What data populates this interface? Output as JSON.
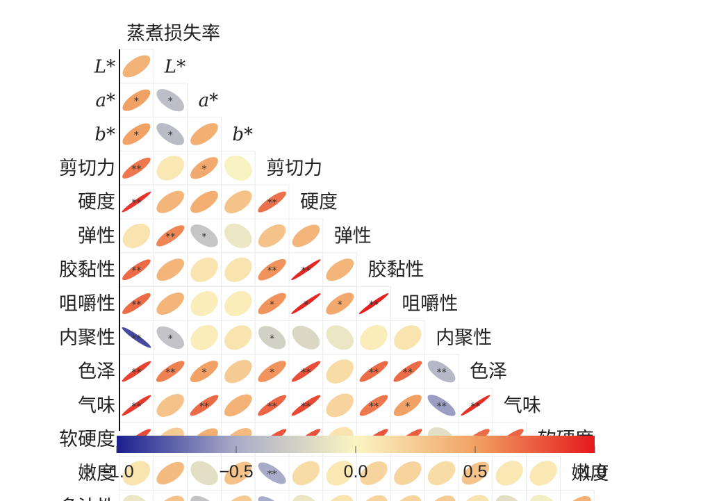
{
  "chart_data": {
    "type": "heatmap",
    "title": "",
    "top_label": "蒸煮损失率",
    "variables": [
      "L*",
      "a*",
      "b*",
      "剪切力",
      "硬度",
      "弹性",
      "胶黏性",
      "咀嚼性",
      "内聚性",
      "色泽",
      "气味",
      "软硬度",
      "嫩度",
      "多汁性"
    ],
    "italic_variables": [
      "L*",
      "a*",
      "b*"
    ],
    "column_labels": [
      "蒸煮损失率",
      "L*",
      "a*",
      "b*",
      "剪切力",
      "硬度",
      "弹性",
      "胶黏性",
      "咀嚼性",
      "内聚性",
      "色泽",
      "气味",
      "软硬度",
      "嫩度"
    ],
    "rows": [
      {
        "label": "L*",
        "values": [
          0.4
        ],
        "sig": [
          ""
        ]
      },
      {
        "label": "a*",
        "values": [
          0.5,
          -0.38
        ],
        "sig": [
          "*",
          "*"
        ]
      },
      {
        "label": "b*",
        "values": [
          0.5,
          -0.4,
          0.42
        ],
        "sig": [
          "*",
          "*",
          ""
        ]
      },
      {
        "label": "剪切力",
        "values": [
          0.65,
          0.08,
          0.45,
          -0.02
        ],
        "sig": [
          "**",
          "",
          "*",
          ""
        ]
      },
      {
        "label": "硬度",
        "values": [
          0.9,
          0.38,
          0.42,
          0.3,
          0.68
        ],
        "sig": [
          "**",
          "",
          "",
          "",
          "**"
        ]
      },
      {
        "label": "弹性",
        "values": [
          0.1,
          0.6,
          -0.32,
          -0.1,
          0.3,
          0.38
        ],
        "sig": [
          "",
          "**",
          "*",
          "",
          "",
          ""
        ]
      },
      {
        "label": "胶黏性",
        "values": [
          0.7,
          0.38,
          0.1,
          0.1,
          0.55,
          0.95,
          0.38
        ],
        "sig": [
          "**",
          "",
          "",
          "",
          "**",
          "**",
          ""
        ]
      },
      {
        "label": "咀嚼性",
        "values": [
          0.7,
          0.38,
          0.05,
          0.05,
          0.55,
          0.95,
          0.45,
          0.97
        ],
        "sig": [
          "**",
          "",
          "",
          "",
          "*",
          "*",
          "*",
          "**"
        ]
      },
      {
        "label": "内聚性",
        "values": [
          -0.85,
          -0.35,
          0.05,
          0.1,
          -0.25,
          -0.2,
          -0.1,
          0.05,
          0.1
        ],
        "sig": [
          "**",
          "*",
          "",
          "",
          "*",
          "",
          "",
          "",
          ""
        ]
      },
      {
        "label": "色泽",
        "values": [
          0.85,
          0.62,
          0.5,
          0.25,
          0.55,
          0.8,
          0.15,
          0.7,
          0.7,
          -0.42
        ],
        "sig": [
          "**",
          "**",
          "*",
          "",
          "*",
          "**",
          "",
          "**",
          "**",
          "**"
        ]
      },
      {
        "label": "气味",
        "values": [
          0.88,
          0.3,
          0.7,
          0.4,
          0.72,
          0.82,
          0.2,
          0.65,
          0.5,
          -0.55,
          0.92
        ],
        "sig": [
          "**",
          "",
          "**",
          "",
          "**",
          "**",
          "",
          "**",
          "*",
          "**",
          "**"
        ]
      },
      {
        "label": "软硬度",
        "values": [
          0.8,
          0.25,
          0.42,
          0.35,
          0.78,
          0.8,
          0.1,
          0.78,
          0.75,
          -0.15,
          0.7,
          0.72
        ],
        "sig": [
          "**",
          "",
          "",
          "",
          "**",
          "**",
          "",
          "**",
          "**",
          "",
          "**",
          "**"
        ]
      },
      {
        "label": "嫩度",
        "values": [
          0.1,
          0.35,
          -0.15,
          0.3,
          -0.5,
          0.15,
          0.08,
          0.2,
          0.2,
          0.15,
          0.3,
          0.08,
          0.08
        ],
        "sig": [
          "",
          "",
          "",
          "",
          "**",
          "",
          "",
          "",
          "",
          "",
          "",
          "",
          ""
        ]
      },
      {
        "label": "多汁性",
        "values": [
          -0.1,
          0.3,
          -0.35,
          0.25,
          -0.5,
          -0.1,
          0.1,
          0.2,
          0.2,
          0.25,
          0.1,
          -0.15,
          -0.05,
          0.4
        ],
        "sig": [
          "",
          "",
          "*",
          "",
          "**",
          "",
          "",
          "",
          "",
          "",
          "",
          "",
          "",
          ""
        ]
      }
    ],
    "colorbar": {
      "min": -1.0,
      "max": 1.0,
      "ticks": [
        "−1.0",
        "−0.5",
        "0.0",
        "0.5",
        "1.0"
      ],
      "tick_values": [
        -1.0,
        -0.5,
        0.0,
        0.5,
        1.0
      ],
      "colors": {
        "neg_end": "#1b1f8f",
        "neg_mid": "#a9acc8",
        "zero": "#fbf5c3",
        "pos_mid": "#f1a163",
        "pos_end": "#e4191c"
      }
    }
  }
}
